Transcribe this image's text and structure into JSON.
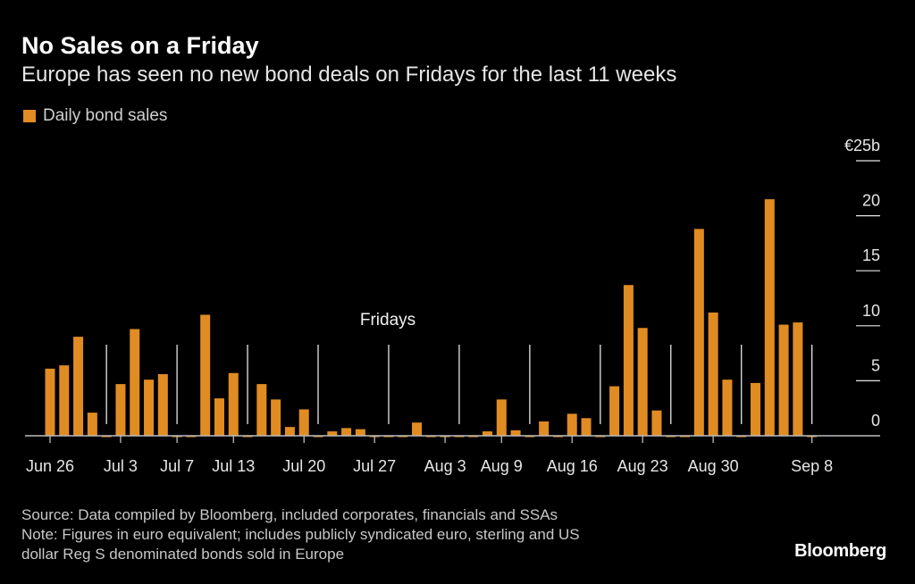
{
  "chart_data": {
    "type": "bar",
    "title": "No Sales on a Friday",
    "subtitle": "Europe has seen no new bond deals on Fridays for the last 11 weeks",
    "legend": [
      {
        "name": "Daily bond sales",
        "color": "#e08c22"
      }
    ],
    "legend_placement": "top-left",
    "xlabel": "",
    "ylabel": "",
    "ylim": [
      0,
      25
    ],
    "y_ticks": [
      0,
      5,
      10,
      15,
      20,
      25
    ],
    "y_tick_labels": [
      "0",
      "5",
      "10",
      "15",
      "20",
      "€25b"
    ],
    "grid": false,
    "annotation": "Fridays",
    "x_tick_labels": [
      {
        "label": "Jun 26",
        "index": 0
      },
      {
        "label": "Jul 3",
        "index": 5
      },
      {
        "label": "Jul 7",
        "index": 9
      },
      {
        "label": "Jul 13",
        "index": 13
      },
      {
        "label": "Jul 20",
        "index": 18
      },
      {
        "label": "Jul 27",
        "index": 23
      },
      {
        "label": "Aug 3",
        "index": 28
      },
      {
        "label": "Aug 9",
        "index": 32
      },
      {
        "label": "Aug 16",
        "index": 37
      },
      {
        "label": "Aug 23",
        "index": 42
      },
      {
        "label": "Aug 30",
        "index": 47
      },
      {
        "label": "Sep 8",
        "index": 54
      }
    ],
    "friday_indices": [
      4,
      9,
      14,
      19,
      24,
      29,
      34,
      39,
      44,
      49,
      54
    ],
    "values": [
      6.1,
      6.4,
      9.0,
      2.1,
      0,
      4.7,
      9.7,
      5.1,
      5.6,
      0,
      0,
      11.0,
      3.4,
      5.7,
      0,
      4.7,
      3.3,
      0.8,
      2.4,
      0,
      0.4,
      0.7,
      0.6,
      0,
      0,
      0,
      1.2,
      0,
      0,
      0,
      0,
      0.4,
      3.3,
      0.5,
      0,
      1.3,
      0,
      2.0,
      1.6,
      0,
      4.5,
      13.7,
      9.8,
      2.3,
      0,
      0,
      18.8,
      11.2,
      5.1,
      0,
      4.8,
      21.5,
      10.1,
      10.3,
      0
    ]
  },
  "footer": {
    "source": "Source: Data compiled by Bloomberg, included corporates, financials and SSAs",
    "note_line1": "Note: Figures in euro equivalent; includes publicly syndicated euro, sterling and US",
    "note_line2": "dollar Reg S denominated bonds sold in Europe",
    "brand": "Bloomberg"
  }
}
